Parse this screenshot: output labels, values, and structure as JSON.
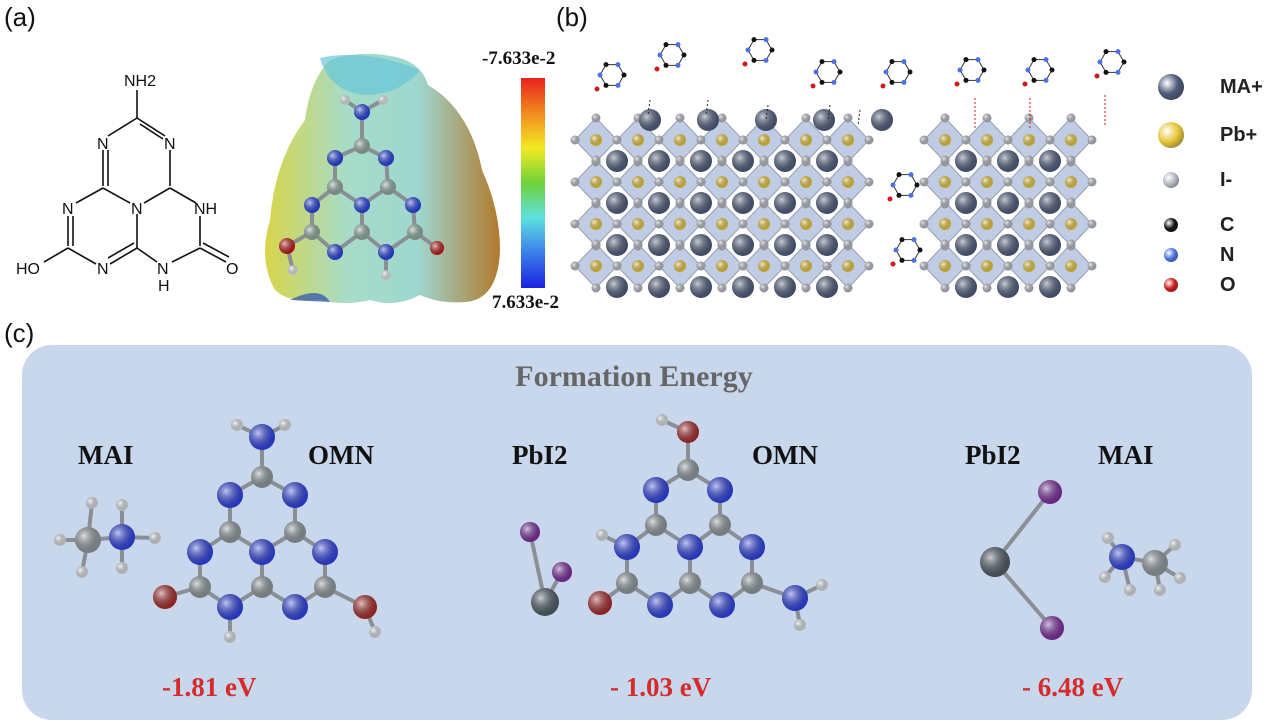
{
  "panels": {
    "a": {
      "label": "(a)",
      "structure_labels": {
        "nh2": "NH2",
        "hn": "NH",
        "o": "O",
        "ho": "HO",
        "n": "N",
        "h": "H"
      },
      "colorbar": {
        "top": "-7.633e-2",
        "bottom": "7.633e-2",
        "colors": [
          "#e8231c",
          "#f08a1e",
          "#f2ea22",
          "#6fd23a",
          "#5fe0e0",
          "#3a7ee8",
          "#1a22e0"
        ]
      }
    },
    "b": {
      "label": "(b)",
      "legend": [
        {
          "label": "MA+",
          "color": "#4c5a7a"
        },
        {
          "label": "Pb+",
          "color": "#e8c63a"
        },
        {
          "label": "I-",
          "color": "#b4b8c2"
        },
        {
          "label": "C",
          "color": "#111111"
        },
        {
          "label": "N",
          "color": "#4a74e0"
        },
        {
          "label": "O",
          "color": "#d01a1a"
        }
      ]
    },
    "c": {
      "label": "(c)",
      "title": "Formation Energy",
      "groups": [
        {
          "left": "MAI",
          "right": "OMN",
          "energy": "-1.81 eV"
        },
        {
          "left": "PbI2",
          "right": "OMN",
          "energy": "- 1.03 eV"
        },
        {
          "left": "PbI2",
          "right": "MAI",
          "energy": "- 6.48 eV"
        }
      ]
    }
  },
  "colors": {
    "panel_bg": "#c8d7ec",
    "energy": "#d42b2b",
    "title": "#666666"
  }
}
